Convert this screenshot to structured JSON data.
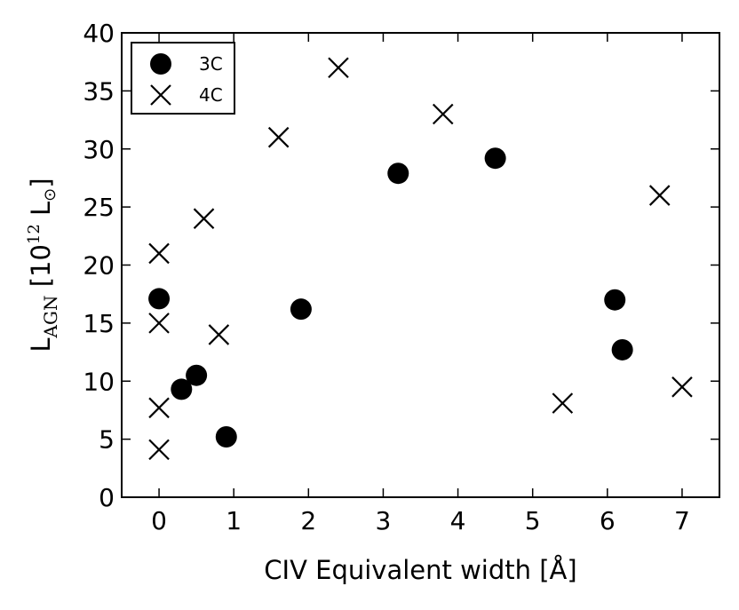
{
  "chart_data": {
    "type": "scatter",
    "xlabel": "CIV Equivalent width [Å]",
    "ylabel_main": "L",
    "ylabel_sub": "AGN",
    "ylabel_unit_open": " [10",
    "ylabel_unit_exp": "12",
    "ylabel_unit_L": " L",
    "ylabel_unit_sun": "⊙",
    "ylabel_unit_close": "]",
    "xlim": [
      -0.5,
      7.5
    ],
    "ylim": [
      0,
      40
    ],
    "xticks": [
      0,
      1,
      2,
      3,
      4,
      5,
      6,
      7
    ],
    "yticks": [
      0,
      5,
      10,
      15,
      20,
      25,
      30,
      35,
      40
    ],
    "grid": false,
    "legend_position": "top-left",
    "series": [
      {
        "name": "3C",
        "marker": "circle",
        "color": "#000000",
        "points": [
          {
            "x": 0.0,
            "y": 17.1
          },
          {
            "x": 0.3,
            "y": 9.3
          },
          {
            "x": 0.5,
            "y": 10.5
          },
          {
            "x": 0.9,
            "y": 5.2
          },
          {
            "x": 1.9,
            "y": 16.2
          },
          {
            "x": 3.2,
            "y": 27.9
          },
          {
            "x": 4.5,
            "y": 29.2
          },
          {
            "x": 6.1,
            "y": 17.0
          },
          {
            "x": 6.2,
            "y": 12.7
          }
        ]
      },
      {
        "name": "4C",
        "marker": "x",
        "color": "#000000",
        "points": [
          {
            "x": 0.0,
            "y": 21.0
          },
          {
            "x": 0.0,
            "y": 15.0
          },
          {
            "x": 0.0,
            "y": 7.7
          },
          {
            "x": 0.0,
            "y": 4.1
          },
          {
            "x": 0.6,
            "y": 24.0
          },
          {
            "x": 0.8,
            "y": 14.0
          },
          {
            "x": 1.6,
            "y": 31.0
          },
          {
            "x": 2.4,
            "y": 37.0
          },
          {
            "x": 3.8,
            "y": 33.0
          },
          {
            "x": 5.4,
            "y": 8.1
          },
          {
            "x": 6.7,
            "y": 26.0
          },
          {
            "x": 7.0,
            "y": 9.5
          }
        ]
      }
    ]
  }
}
